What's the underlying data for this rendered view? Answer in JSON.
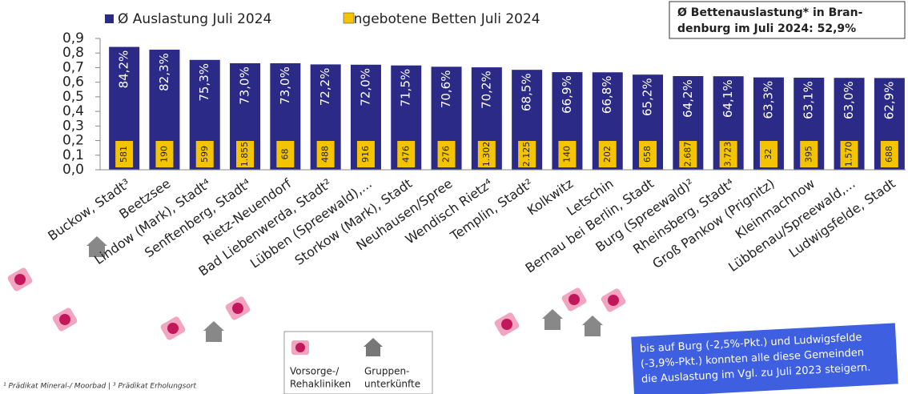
{
  "chart_data": {
    "type": "bar",
    "categories": [
      "Buckow, Stadt³",
      "Beetzsee",
      "Lindow (Mark), Stadt⁴",
      "Senftenberg, Stadt⁴",
      "Rietz-Neuendorf",
      "Bad Liebenwerda, Stadt²",
      "Lübben (Spreewald),...",
      "Storkow (Mark), Stadt",
      "Neuhausen/Spree",
      "Wendisch Rietz⁴",
      "Templin, Stadt²",
      "Kolkwitz",
      "Letschin",
      "Bernau bei Berlin, Stadt",
      "Burg (Spreewald)²",
      "Rheinsberg, Stadt⁴",
      "Groß Pankow (Prignitz)",
      "Kleinmachnow",
      "Lübbenau/Spreewald,...",
      "Ludwigsfelde, Stadt"
    ],
    "series": [
      {
        "name": "Ø Auslastung Juli 2024",
        "color": "#2b2a86",
        "values": [
          0.842,
          0.823,
          0.753,
          0.73,
          0.73,
          0.722,
          0.72,
          0.715,
          0.706,
          0.702,
          0.685,
          0.669,
          0.668,
          0.652,
          0.642,
          0.641,
          0.633,
          0.631,
          0.63,
          0.629
        ],
        "value_labels": [
          "84,2%",
          "82,3%",
          "75,3%",
          "73,0%",
          "73,0%",
          "72,2%",
          "72,0%",
          "71,5%",
          "70,6%",
          "70,2%",
          "68,5%",
          "66,9%",
          "66,8%",
          "65,2%",
          "64,2%",
          "64,1%",
          "63,3%",
          "63,1%",
          "63,0%",
          "62,9%"
        ]
      },
      {
        "name": "Angebotene Betten Juli 2024",
        "color": "#f5c400",
        "values": [
          581,
          190,
          599,
          1855,
          68,
          488,
          916,
          476,
          276,
          1302,
          2125,
          140,
          202,
          658,
          2687,
          3723,
          32,
          395,
          1570,
          688
        ],
        "value_labels": [
          "581",
          "190",
          "599",
          "1.855",
          "68",
          "488",
          "916",
          "476",
          "276",
          "1.302",
          "2.125",
          "140",
          "202",
          "658",
          "2.687",
          "3.723",
          "32",
          "395",
          "1.570",
          "688"
        ]
      }
    ],
    "ylim": [
      0,
      0.9
    ],
    "yticks": [
      {
        "value": 0,
        "label": "0,0"
      },
      {
        "value": 0.1,
        "label": "0,1"
      },
      {
        "value": 0.2,
        "label": "0,2"
      },
      {
        "value": 0.3,
        "label": "0,3"
      },
      {
        "value": 0.4,
        "label": "0,4"
      },
      {
        "value": 0.5,
        "label": "0,5"
      },
      {
        "value": 0.6,
        "label": "0,6"
      },
      {
        "value": 0.7,
        "label": "0,7"
      },
      {
        "value": 0.8,
        "label": "0,8"
      },
      {
        "value": 0.9,
        "label": "0,9"
      }
    ],
    "annotation": [
      "Ø Bettenauslastung* in Bran-",
      "denburg im Juli 2024: 52,9%"
    ],
    "icon_legend": [
      "Vorsorge-/",
      "Rehakliniken",
      "Gruppen-",
      "unterkünfte"
    ],
    "footnote": "¹ Prädikat Mineral-/ Moorbad | ³ Prädikat Erholungsort",
    "note": [
      "bis auf Burg (-2,5%-Pkt.) und Ludwigsfelde",
      "(-3,9%-Pkt.) konnten alle diese Gemeinden",
      "die Auslastung im Vgl. zu Juli 2023 steigern."
    ]
  }
}
